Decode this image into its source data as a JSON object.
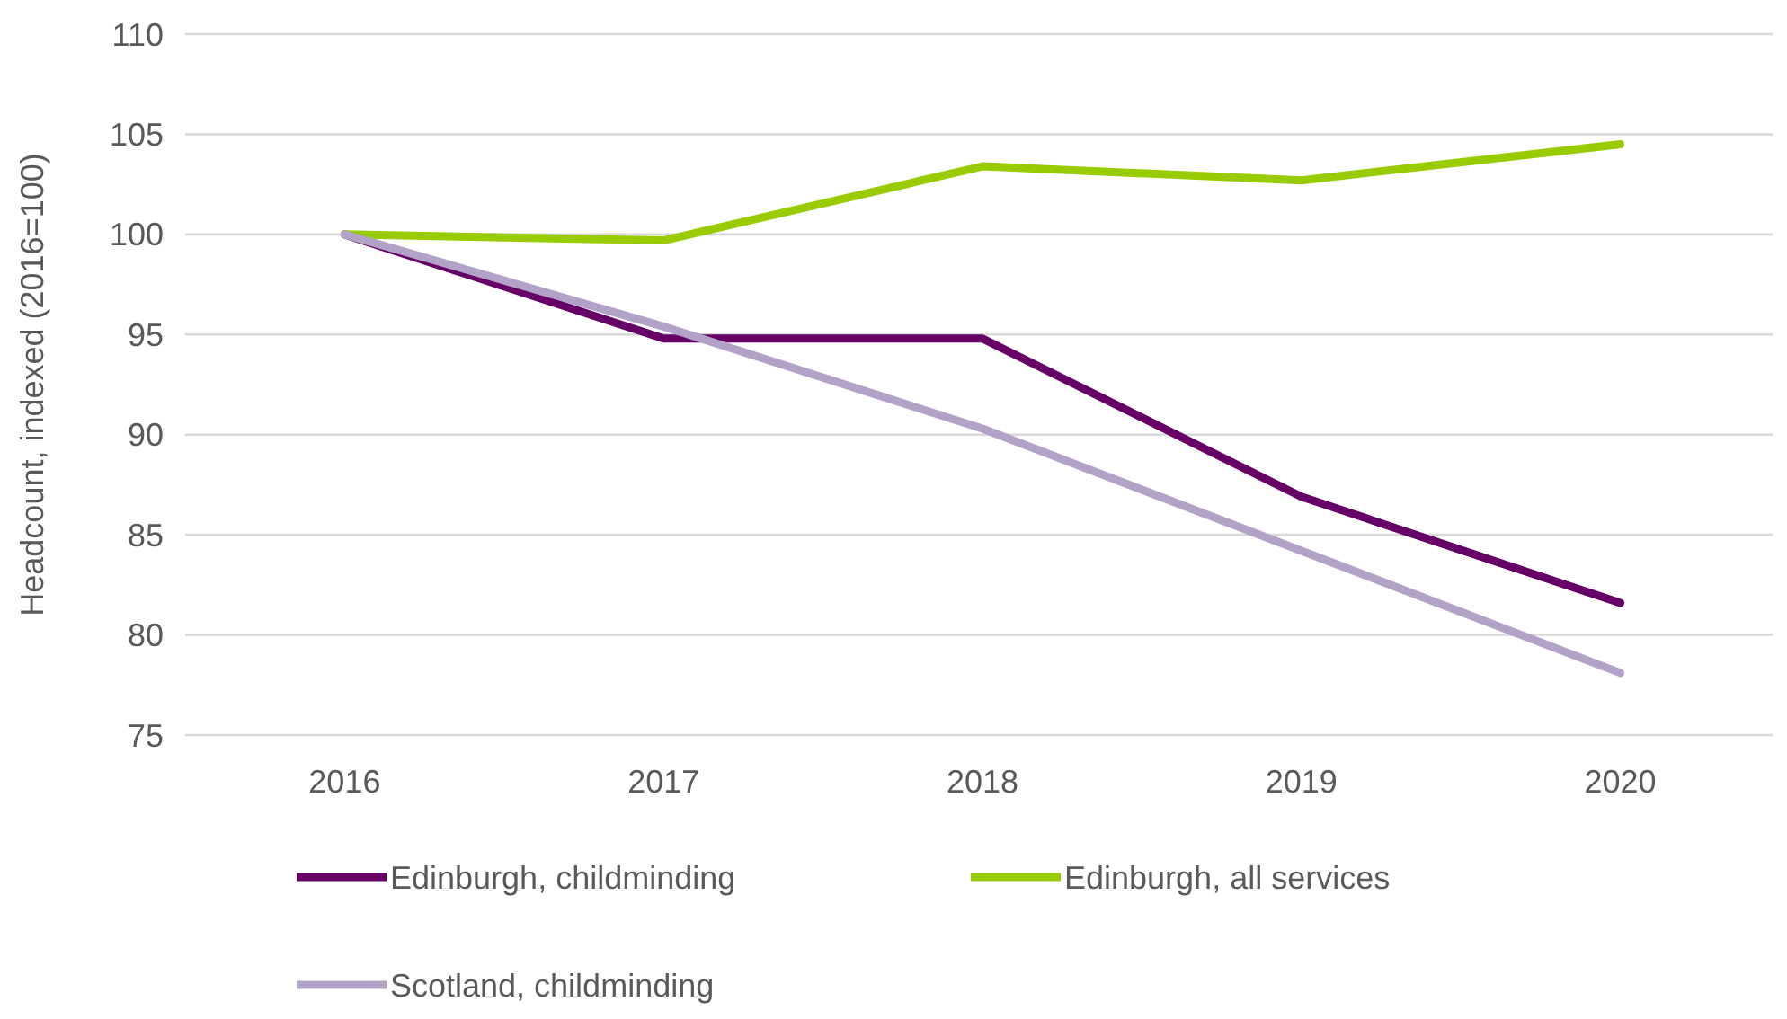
{
  "chart_data": {
    "type": "line",
    "ylabel": "Headcount, indexed (2016=100)",
    "categories": [
      "2016",
      "2017",
      "2018",
      "2019",
      "2020"
    ],
    "ylim": [
      75,
      110
    ],
    "yticks": [
      75,
      80,
      85,
      90,
      95,
      100,
      105,
      110
    ],
    "grid": "y",
    "legend": "bottom",
    "marker": "none",
    "line_style": "solid",
    "series": [
      {
        "name": "Edinburgh, childminding",
        "color": "#660066",
        "values": [
          100,
          94.8,
          94.8,
          86.9,
          81.6
        ]
      },
      {
        "name": "Edinburgh, all services",
        "color": "#99cc00",
        "values": [
          100,
          99.7,
          103.4,
          102.7,
          104.5
        ]
      },
      {
        "name": "Scotland, childminding",
        "color": "#b3a2c7",
        "values": [
          100,
          95.4,
          90.3,
          84.2,
          78.1
        ]
      }
    ]
  }
}
